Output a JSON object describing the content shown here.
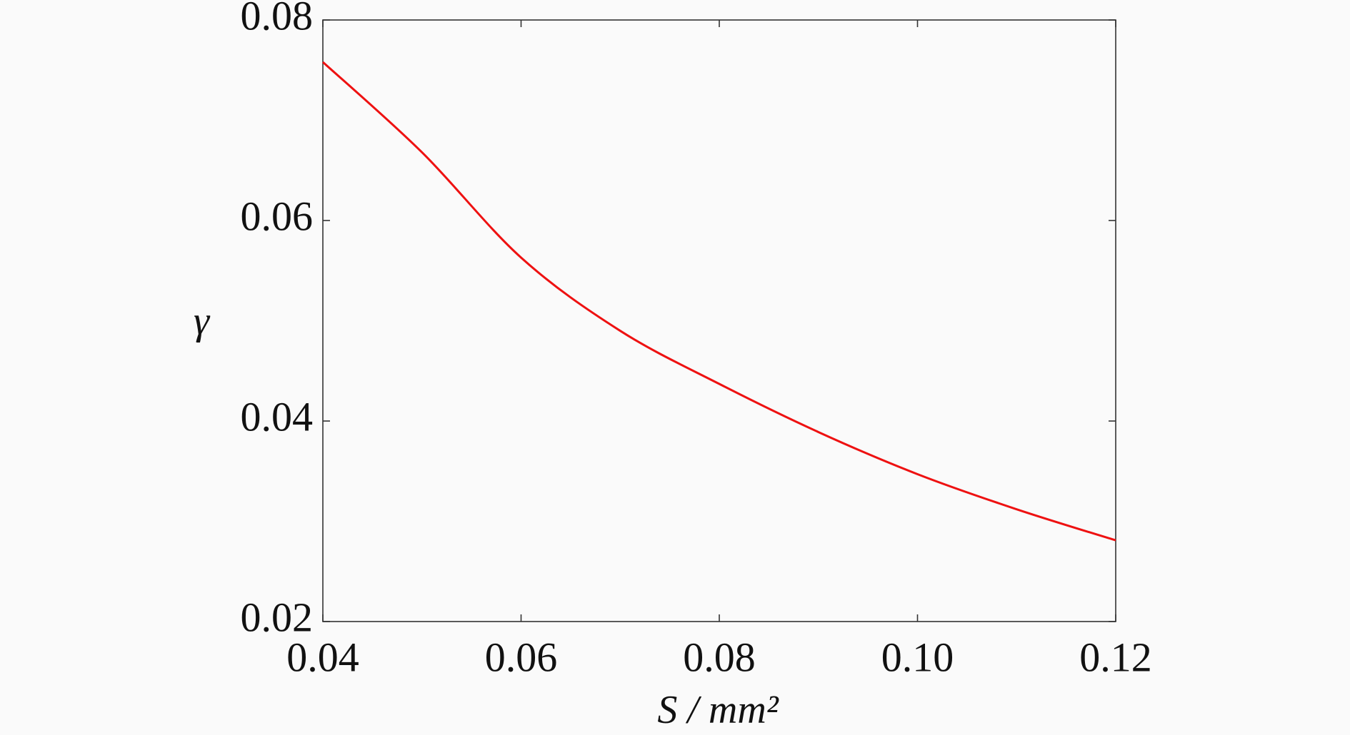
{
  "chart_data": {
    "type": "line",
    "x_label": "S / mm²",
    "y_label": "γ",
    "x": [
      0.04,
      0.05,
      0.06,
      0.07,
      0.08,
      0.09,
      0.1,
      0.11,
      0.12
    ],
    "series": [
      {
        "color": "#ee1111",
        "values": [
          0.0758,
          0.0668,
          0.0563,
          0.049,
          0.0437,
          0.0389,
          0.0347,
          0.0312,
          0.0281
        ]
      }
    ],
    "xlim": [
      0.04,
      0.12
    ],
    "ylim": [
      0.02,
      0.08
    ],
    "xticks": [
      0.04,
      0.06,
      0.08,
      {
        "value": 0.1,
        "label": "0.10"
      },
      0.12
    ],
    "yticks": [
      0.02,
      0.04,
      0.06,
      0.08
    ],
    "grid": false
  }
}
